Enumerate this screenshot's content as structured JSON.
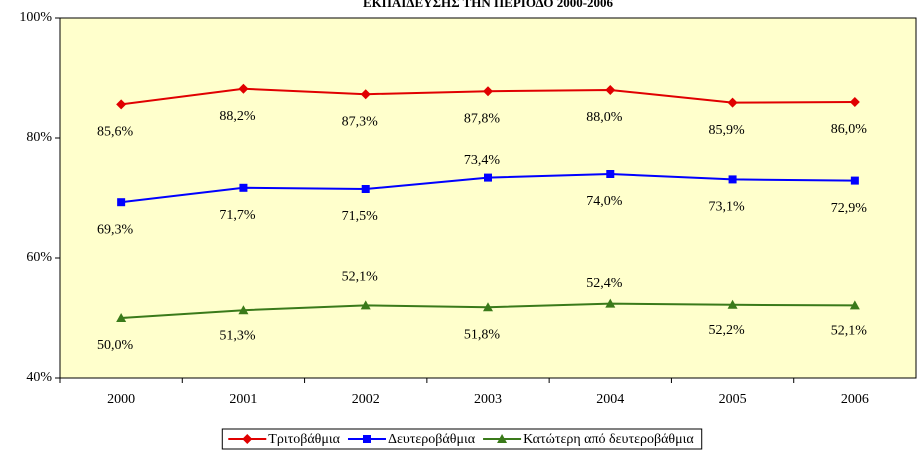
{
  "chart_data": {
    "type": "line",
    "title": "ΕΚΠΑΙΔΕΥΣΗΣ ΤΗΝ ΠΕΡΙΟΔΟ 2000-2006",
    "categories": [
      "2000",
      "2001",
      "2002",
      "2003",
      "2004",
      "2005",
      "2006"
    ],
    "series": [
      {
        "name": "Τριτοβάθμια",
        "color": "#e00000",
        "marker": "diamond",
        "values": [
          85.6,
          88.2,
          87.3,
          87.8,
          88.0,
          85.9,
          86.0
        ],
        "value_labels": [
          "85,6%",
          "88,2%",
          "87,3%",
          "87,8%",
          "88,0%",
          "85,9%",
          "86,0%"
        ]
      },
      {
        "name": "Δευτεροβάθμια",
        "color": "#0000ff",
        "marker": "square",
        "values": [
          69.3,
          71.7,
          71.5,
          73.4,
          74.0,
          73.1,
          72.9
        ],
        "value_labels": [
          "69,3%",
          "71,7%",
          "71,5%",
          "73,4%",
          "74,0%",
          "73,1%",
          "72,9%"
        ]
      },
      {
        "name": "Κατώτερη από δευτεροβάθμια",
        "color": "#3a7a1a",
        "marker": "triangle",
        "values": [
          50.0,
          51.3,
          52.1,
          51.8,
          52.4,
          52.2,
          52.1
        ],
        "value_labels": [
          "50,0%",
          "51,3%",
          "52,1%",
          "51,8%",
          "52,4%",
          "52,2%",
          "52,1%"
        ]
      }
    ],
    "ylim": [
      40,
      100
    ],
    "yticks": [
      {
        "value": 40,
        "label": "40%"
      },
      {
        "value": 60,
        "label": "60%"
      },
      {
        "value": 80,
        "label": "80%"
      },
      {
        "value": 100,
        "label": "100%"
      }
    ],
    "legend": "bottom"
  }
}
